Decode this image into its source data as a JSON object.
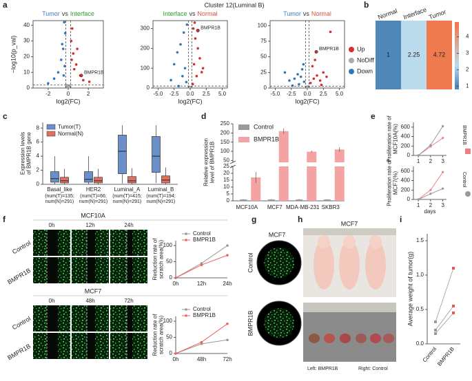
{
  "panel_labels": [
    "a",
    "b",
    "c",
    "d",
    "e",
    "f",
    "g",
    "h",
    "i"
  ],
  "a": {
    "title": "Cluster 12(Luminal B)",
    "x_label": "log2(FC)",
    "y_label": "−log10(p_val)",
    "legend": {
      "names": [
        "Up",
        "NoDiff",
        "Down"
      ],
      "colors": [
        "#d62f2f",
        "#aaaaaa",
        "#2f78b8"
      ]
    },
    "plots": [
      {
        "subtitle": [
          {
            "text": "Tumor",
            "color": "#3b7dc0"
          },
          {
            "text": "vs",
            "color": "#333333"
          },
          {
            "text": "Interface",
            "color": "#2aa02a"
          }
        ],
        "xlim": [
          -3.5,
          3.5
        ],
        "ylim": [
          0,
          43
        ],
        "xticks": [
          -2,
          0,
          2
        ],
        "yticks": [
          0,
          10,
          20,
          30,
          40
        ],
        "cutoff_x": [
          -0.25,
          0.25
        ],
        "cutoff_y": 2,
        "groups": [
          {
            "x": [
              0.3,
              0.5,
              0.8,
              1.2,
              0.4,
              0.6,
              1.5,
              0.35,
              0.9,
              2.1
            ],
            "y": [
              30,
              22,
              15,
              8,
              38,
              12,
              5,
              18,
              25,
              4
            ]
          },
          {
            "x": [
              -0.1,
              0.05,
              0.15,
              -0.2,
              0.1,
              -0.05,
              0.2,
              -0.15
            ],
            "y": [
              1,
              0.5,
              1.5,
              0.8,
              0.3,
              1.2,
              0.6,
              1.8
            ]
          },
          {
            "x": [
              -0.3,
              -0.5,
              -0.7,
              -1.0,
              -0.4,
              -0.35,
              -1.4,
              -0.6,
              -0.45,
              -2.0
            ],
            "y": [
              35,
              25,
              18,
              10,
              42,
              14,
              6,
              28,
              8,
              3
            ]
          }
        ],
        "highlight": {
          "label": "BMPR1B",
          "x": 1.3,
          "y": 8
        }
      },
      {
        "subtitle": [
          {
            "text": "Interface",
            "color": "#2aa02a"
          },
          {
            "text": "vs",
            "color": "#333333"
          },
          {
            "text": "Normal",
            "color": "#e0503a"
          }
        ],
        "xlim": [
          -5.8,
          5.8
        ],
        "ylim": [
          0,
          340
        ],
        "xticks": [
          {
            "value": -5,
            "label": "-5.0"
          },
          {
            "value": -2.5,
            "label": "-2.5"
          },
          {
            "value": 0,
            "label": "0.0"
          },
          {
            "value": 2.5,
            "label": "2.5"
          },
          {
            "value": 5,
            "label": "5.0"
          }
        ],
        "yticks": [
          0,
          100,
          200,
          300
        ],
        "cutoff_x": [
          -0.25,
          0.25
        ],
        "cutoff_y": 10,
        "groups": [
          {
            "x": [
              0.5,
              0.8,
              1.2,
              1.5,
              0.6,
              2.0,
              1.0,
              0.7,
              1.8,
              0.4
            ],
            "y": [
              300,
              250,
              200,
              150,
              120,
              100,
              60,
              330,
              80,
              20
            ]
          },
          {
            "x": [
              -0.1,
              0.05,
              0.15,
              -0.2,
              0.1,
              -0.05
            ],
            "y": [
              3,
              5,
              2,
              6,
              4,
              1
            ]
          },
          {
            "x": [
              -0.5,
              -1.0,
              -1.5,
              -2.0,
              -2.5,
              -0.8,
              -1.2,
              -3.0,
              -0.6,
              -1.8
            ],
            "y": [
              320,
              280,
              220,
              180,
              120,
              100,
              60,
              40,
              30,
              10
            ]
          }
        ],
        "highlight": {
          "label": "BMPR1B",
          "x": 1.2,
          "y": 290
        }
      },
      {
        "subtitle": [
          {
            "text": "Tumor",
            "color": "#3b7dc0"
          },
          {
            "text": "vs",
            "color": "#333333"
          },
          {
            "text": "Normal",
            "color": "#e0503a"
          }
        ],
        "xlim": [
          -5.8,
          5.8
        ],
        "ylim": [
          0,
          108
        ],
        "xticks": [
          {
            "value": -5,
            "label": "-5.0"
          },
          {
            "value": -2.5,
            "label": "-2.5"
          },
          {
            "value": 0,
            "label": "0.0"
          },
          {
            "value": 2.5,
            "label": "2.5"
          },
          {
            "value": 5,
            "label": "5.0"
          }
        ],
        "yticks": [
          0,
          25,
          50,
          75,
          100
        ],
        "cutoff_x": [
          -0.25,
          0.25
        ],
        "cutoff_y": 3,
        "groups": [
          {
            "x": [
              0.5,
              1.0,
              1.5,
              2.0,
              2.5,
              3.0,
              0.8,
              1.2,
              3.6,
              2.2
            ],
            "y": [
              8,
              15,
              20,
              12,
              25,
              18,
              35,
              45,
              90,
              5
            ]
          },
          {
            "x": [
              -0.1,
              0.05,
              0.15,
              -0.2,
              0.1
            ],
            "y": [
              1,
              2,
              1.5,
              0.5,
              2.5
            ]
          },
          {
            "x": [
              -0.5,
              -1.0,
              -1.5,
              -2.0,
              -2.8,
              -0.8,
              -1.3,
              -3.5,
              -0.6,
              -2.3
            ],
            "y": [
              10,
              18,
              22,
              15,
              12,
              30,
              6,
              25,
              38,
              4
            ]
          }
        ],
        "highlight": {
          "label": "BMPR1B",
          "x": 1.4,
          "y": 58
        }
      }
    ]
  },
  "b": {
    "columns": [
      "Normal",
      "Interface",
      "Tumor"
    ],
    "header_colors": [
      "#e0503a",
      "#2aa02a",
      "#3b7dc0"
    ],
    "values": [
      1,
      2.25,
      4.72
    ],
    "colors": [
      "#4f87b9",
      "#b9dbec",
      "#ef7a4e"
    ],
    "colorbar_lim": [
      0.8,
      4.9
    ],
    "colorbar_ticks": [
      1,
      2,
      3,
      4
    ]
  },
  "c": {
    "y_label": [
      "Expression levels",
      "of BMPR1B gene"
    ],
    "ylim": [
      0,
      8.8
    ],
    "yticks": [
      0,
      2,
      4,
      6,
      8
    ],
    "categories": [
      "Basal_like",
      "HER2",
      "Luminal_A",
      "Luminal_B"
    ],
    "category_notes": [
      [
        "(num(T)=135;",
        "num(N)=291)"
      ],
      [
        "(num(T)=66;",
        "num(N)=291)"
      ],
      [
        "(num(T)=415;",
        "num(N)=291)"
      ],
      [
        "(num(T)=194;",
        "num(N)=291)"
      ]
    ],
    "series": [
      {
        "name": "Tumor(T)",
        "color": "#6b8fc9",
        "boxes": [
          [
            0,
            0.3,
            0.8,
            1.8,
            4
          ],
          [
            0,
            0.3,
            0.7,
            1.8,
            4
          ],
          [
            0.1,
            1.5,
            4.7,
            7,
            8.4
          ],
          [
            0.2,
            1.7,
            4,
            6.8,
            8.4
          ]
        ]
      },
      {
        "name": "Normal(N)",
        "color": "#e07060",
        "boxes": [
          [
            0,
            0.2,
            0.5,
            1,
            2.2
          ],
          [
            0,
            0.2,
            0.5,
            1,
            2.2
          ],
          [
            0,
            0.2,
            0.5,
            1.1,
            2.3
          ],
          [
            0,
            0.2,
            0.6,
            1.2,
            2.4
          ]
        ]
      }
    ]
  },
  "d": {
    "y_label": [
      "Relative expression",
      "level of BMPR1B"
    ],
    "ylim_segments": [
      [
        0,
        25
      ],
      [
        40,
        250
      ]
    ],
    "yticks": [
      0,
      5,
      10,
      15,
      20,
      25,
      50,
      100,
      150,
      200,
      250
    ],
    "categories": [
      "MCF10A",
      "MCF7",
      "MDA-MB-231",
      "SKBR3"
    ],
    "series": [
      {
        "name": "Control",
        "color": "#9a9a9a",
        "values": [
          1,
          1,
          1,
          1
        ],
        "errors": [
          0.2,
          0.2,
          0.2,
          0.2
        ]
      },
      {
        "name": "BMPR1B",
        "color": "#f4a3a3",
        "values": [
          17,
          210,
          98,
          110
        ],
        "errors": [
          4,
          15,
          5,
          12
        ]
      }
    ]
  },
  "e": {
    "x": [
      1,
      2,
      3
    ],
    "xlim": [
      0.6,
      3.3
    ],
    "x_label": "days",
    "ylim": [
      0,
      700
    ],
    "yticks": [
      0,
      200,
      400,
      600
    ],
    "legend": {
      "names": [
        "BMPR1B",
        "Control"
      ],
      "colors": [
        "#f08080",
        "#999999"
      ]
    },
    "charts": [
      {
        "y_label": [
          "Proliferation rate of",
          "MCF10A(%)"
        ],
        "series": [
          [
            0,
            190,
            370
          ],
          [
            0,
            220,
            620
          ]
        ]
      },
      {
        "y_label": [
          "Proliferation rate of",
          "MCF7(%)"
        ],
        "series": [
          [
            0,
            200,
            580
          ],
          [
            0,
            120,
            230
          ]
        ]
      }
    ]
  },
  "f": {
    "rows": [
      "Control",
      "BMPR1B"
    ],
    "y_label": [
      "Reduction rate of",
      "scratch area(%)"
    ],
    "ylim": [
      0,
      115
    ],
    "yticks": [
      0,
      50,
      100
    ],
    "legend": {
      "names": [
        "Control",
        "BMPR1B"
      ],
      "colors": [
        "#999999",
        "#f06060"
      ]
    },
    "sections": [
      {
        "title": "MCF10A",
        "times": [
          "0h",
          "12h",
          "24h"
        ],
        "series": [
          [
            0,
            45,
            100
          ],
          [
            0,
            40,
            70
          ]
        ]
      },
      {
        "title": "MCF7",
        "times": [
          "0h",
          "48h",
          "72h"
        ],
        "series": [
          [
            0,
            30,
            42
          ],
          [
            0,
            35,
            92
          ]
        ]
      }
    ]
  },
  "g": {
    "title": "MCF7",
    "rows": [
      "Control",
      "BMPR1B"
    ]
  },
  "h": {
    "title": "MCF7",
    "caption_left": "Left: BMPR1B",
    "caption_right": "Right: Control"
  },
  "i": {
    "y_label": "Average weight of tumor(g)",
    "categories": [
      "Control",
      "BMPR1B"
    ],
    "colors": [
      "#999999",
      "#e05a5a"
    ],
    "ylim": [
      0,
      1.6
    ],
    "yticks": [
      {
        "value": 0,
        "label": "0.0"
      },
      {
        "value": 0.5,
        "label": "0.5"
      },
      {
        "value": 1,
        "label": "1.0"
      },
      {
        "value": 1.5,
        "label": "1.5"
      }
    ],
    "pairs": [
      [
        0.32,
        1.1
      ],
      [
        0.2,
        0.55
      ],
      [
        0.15,
        0.45
      ]
    ]
  }
}
